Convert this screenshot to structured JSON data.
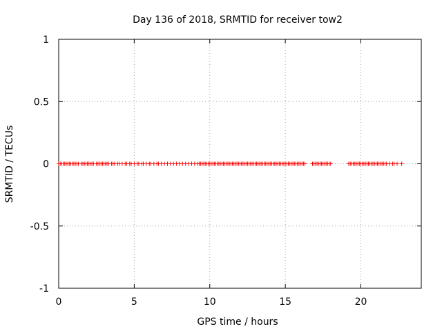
{
  "chart_data": {
    "type": "scatter",
    "title": "Day 136 of 2018, SRMTID for receiver tow2",
    "xlabel": "GPS time / hours",
    "ylabel": "SRMTID / TECUs",
    "xlim": [
      0,
      24
    ],
    "ylim": [
      -1,
      1
    ],
    "x_ticks": [
      0,
      5,
      10,
      15,
      20
    ],
    "x_tick_labels": [
      "0",
      "5",
      "10",
      "15",
      "20"
    ],
    "y_ticks": [
      -1,
      -0.5,
      0,
      0.5,
      1
    ],
    "y_tick_labels": [
      "-1",
      "-0.5",
      "0",
      "0.5",
      "1"
    ],
    "grid": true,
    "marker": "plus",
    "color": "#ff0000",
    "series": [
      {
        "name": "SRMTID",
        "value": 0,
        "x": [
          0.0,
          0.1,
          0.2,
          0.3,
          0.4,
          0.5,
          0.6,
          0.7,
          0.8,
          0.9,
          1.0,
          1.1,
          1.2,
          1.3,
          1.5,
          1.6,
          1.7,
          1.8,
          1.9,
          2.0,
          2.1,
          2.2,
          2.3,
          2.5,
          2.6,
          2.7,
          2.8,
          2.9,
          3.0,
          3.1,
          3.2,
          3.3,
          3.5,
          3.6,
          3.7,
          3.9,
          4.0,
          4.2,
          4.4,
          4.5,
          4.7,
          4.8,
          5.0,
          5.2,
          5.3,
          5.5,
          5.6,
          5.8,
          6.0,
          6.1,
          6.3,
          6.5,
          6.6,
          6.8,
          7.0,
          7.2,
          7.4,
          7.6,
          7.8,
          8.0,
          8.2,
          8.4,
          8.6,
          8.8,
          9.0,
          9.2,
          9.3,
          9.4,
          9.5,
          9.6,
          9.7,
          9.8,
          9.9,
          10.0,
          10.1,
          10.2,
          10.3,
          10.4,
          10.5,
          10.6,
          10.7,
          10.8,
          10.9,
          11.0,
          11.1,
          11.2,
          11.3,
          11.4,
          11.5,
          11.6,
          11.7,
          11.8,
          11.9,
          12.0,
          12.1,
          12.2,
          12.3,
          12.4,
          12.5,
          12.6,
          12.7,
          12.8,
          12.9,
          13.0,
          13.1,
          13.2,
          13.3,
          13.4,
          13.5,
          13.6,
          13.7,
          13.8,
          13.9,
          14.0,
          14.1,
          14.2,
          14.3,
          14.4,
          14.5,
          14.6,
          14.7,
          14.8,
          14.9,
          15.0,
          15.1,
          15.2,
          15.3,
          15.4,
          15.5,
          15.6,
          15.7,
          15.8,
          15.9,
          16.0,
          16.1,
          16.2,
          16.3,
          16.8,
          16.9,
          17.0,
          17.1,
          17.2,
          17.3,
          17.4,
          17.5,
          17.6,
          17.7,
          17.8,
          17.9,
          18.0,
          19.2,
          19.3,
          19.4,
          19.5,
          19.6,
          19.7,
          19.8,
          19.9,
          20.0,
          20.1,
          20.2,
          20.3,
          20.4,
          20.5,
          20.6,
          20.7,
          20.8,
          20.9,
          21.0,
          21.1,
          21.2,
          21.3,
          21.4,
          21.5,
          21.6,
          21.7,
          21.9,
          22.1,
          22.2,
          22.4,
          22.7
        ]
      }
    ]
  }
}
